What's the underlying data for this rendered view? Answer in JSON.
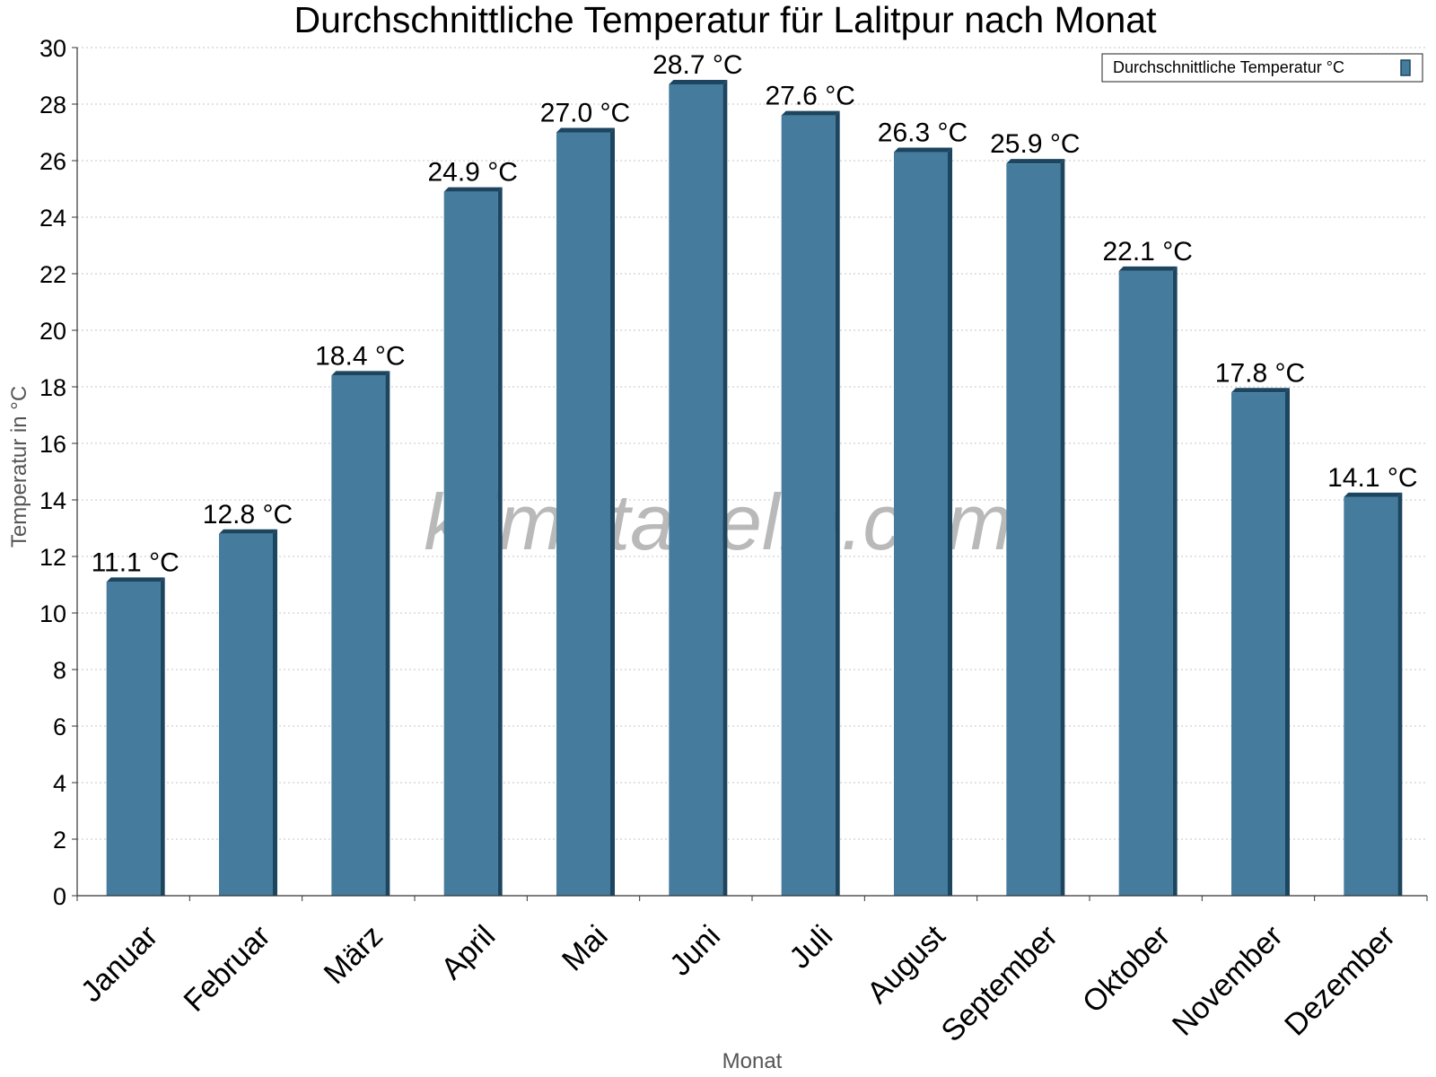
{
  "chart_data": {
    "type": "bar",
    "title": "Durchschnittliche Temperatur für Lalitpur nach Monat",
    "xlabel": "Monat",
    "ylabel": "Temperatur in °C",
    "ylim": [
      0,
      30
    ],
    "ytick_step": 2,
    "grid": true,
    "legend_position": "top-right",
    "watermark": "klimatabelle.com",
    "categories": [
      "Januar",
      "Februar",
      "März",
      "April",
      "Mai",
      "Juni",
      "Juli",
      "August",
      "September",
      "Oktober",
      "November",
      "Dezember"
    ],
    "series": [
      {
        "name": "Durchschnittliche Temperatur °C",
        "color": "#457b9d",
        "values": [
          11.1,
          12.8,
          18.4,
          24.9,
          27.0,
          28.7,
          27.6,
          26.3,
          25.9,
          22.1,
          17.8,
          14.1
        ],
        "labels": [
          "11.1 °C",
          "12.8 °C",
          "18.4 °C",
          "24.9 °C",
          "27.0 °C",
          "28.7 °C",
          "27.6 °C",
          "26.3 °C",
          "25.9 °C",
          "22.1 °C",
          "17.8 °C",
          "14.1 °C"
        ]
      }
    ]
  }
}
